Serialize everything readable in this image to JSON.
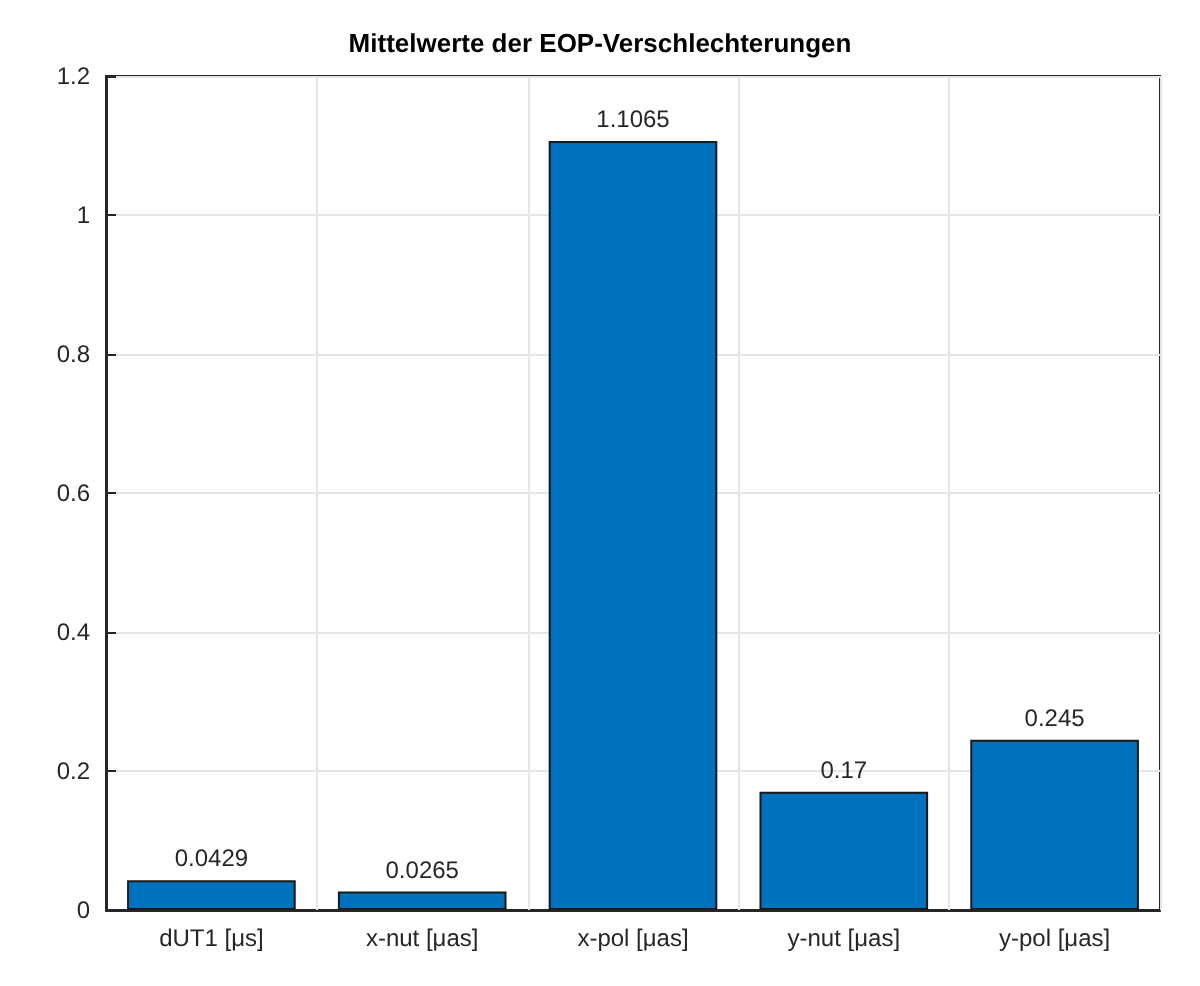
{
  "chart_data": {
    "type": "bar",
    "title": "Mittelwerte der EOP-Verschlechterungen",
    "categories": [
      "dUT1 [μs]",
      "x-nut [μas]",
      "x-pol [μas]",
      "y-nut [μas]",
      "y-pol [μas]"
    ],
    "values": [
      0.0429,
      0.0265,
      1.1065,
      0.17,
      0.245
    ],
    "color": "#0072bd",
    "ylim": [
      0,
      1.2
    ],
    "yticks": [
      0,
      0.2,
      0.4,
      0.6,
      0.8,
      1,
      1.2
    ],
    "grid": true,
    "data_labels": true
  }
}
